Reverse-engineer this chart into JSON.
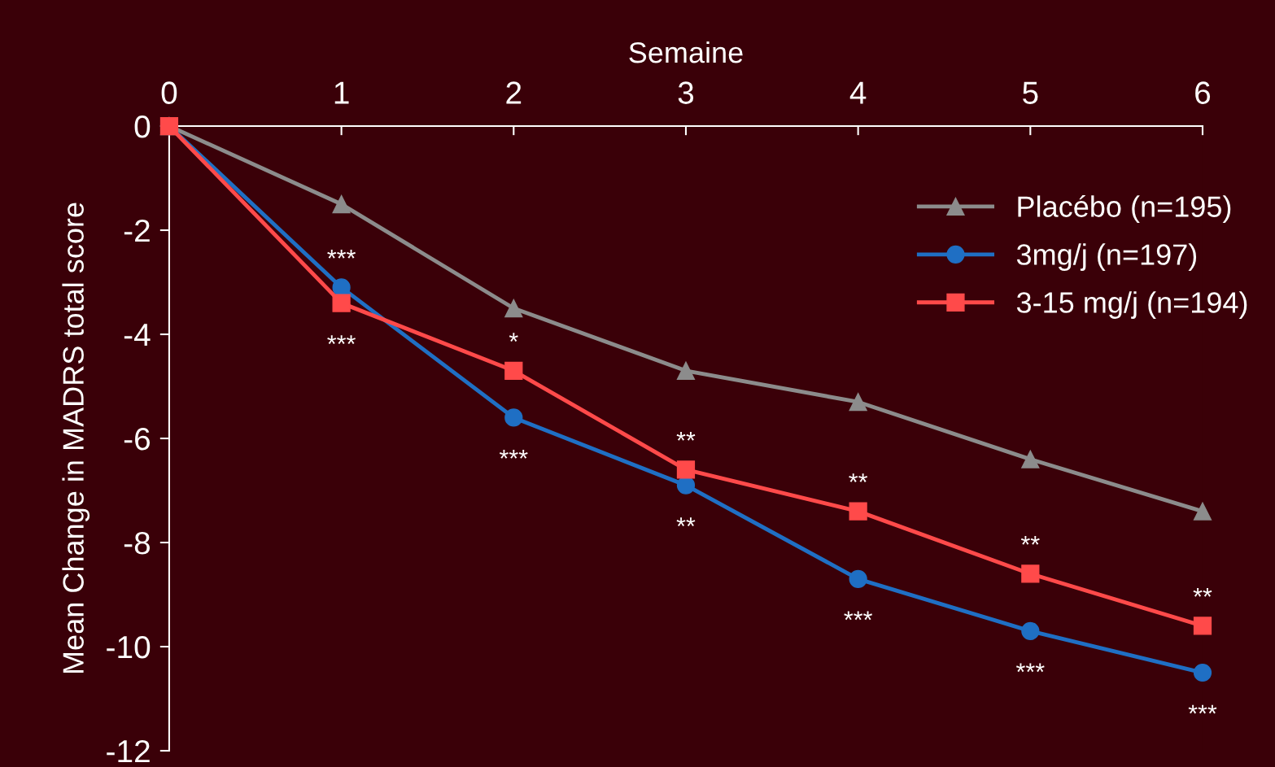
{
  "chart_data": {
    "type": "line",
    "xlabel": "Semaine",
    "ylabel": "Mean Change in MADRS total score",
    "x": [
      0,
      1,
      2,
      3,
      4,
      5,
      6
    ],
    "series": [
      {
        "name": "Placébo (n=195)",
        "color": "#8c8c8c",
        "marker": "triangle",
        "values": [
          0,
          -1.5,
          -3.5,
          -4.7,
          -5.3,
          -6.4,
          -7.4
        ]
      },
      {
        "name": "3mg/j (n=197)",
        "color": "#1f6fc4",
        "marker": "circle",
        "values": [
          0,
          -3.1,
          -5.6,
          -6.9,
          -8.7,
          -9.7,
          -10.5
        ]
      },
      {
        "name": "3-15 mg/j (n=194)",
        "color": "#ff4a4a",
        "marker": "square",
        "values": [
          0,
          -3.4,
          -4.7,
          -6.6,
          -7.4,
          -8.6,
          -9.6
        ]
      }
    ],
    "xlim": [
      0,
      6
    ],
    "xticks": [
      0,
      1,
      2,
      3,
      4,
      5,
      6
    ],
    "ylim": [
      -12,
      0
    ],
    "yticks": [
      0,
      -2,
      -4,
      -6,
      -8,
      -10,
      -12
    ],
    "grid": false,
    "legend": "top right",
    "annotations": [
      {
        "text": "***",
        "x": 1,
        "y": -3.1
      },
      {
        "text": "***",
        "x": 1,
        "y": -3.4
      },
      {
        "text": "*",
        "x": 2,
        "y": -4.7
      },
      {
        "text": "***",
        "x": 2,
        "y": -5.6
      },
      {
        "text": "**",
        "x": 3,
        "y": -6.6
      },
      {
        "text": "**",
        "x": 3,
        "y": -6.9
      },
      {
        "text": "**",
        "x": 4,
        "y": -7.4
      },
      {
        "text": "***",
        "x": 4,
        "y": -8.7
      },
      {
        "text": "**",
        "x": 5,
        "y": -8.6
      },
      {
        "text": "***",
        "x": 5,
        "y": -9.7
      },
      {
        "text": "**",
        "x": 6,
        "y": -9.6
      },
      {
        "text": "***",
        "x": 6,
        "y": -10.5
      }
    ]
  }
}
